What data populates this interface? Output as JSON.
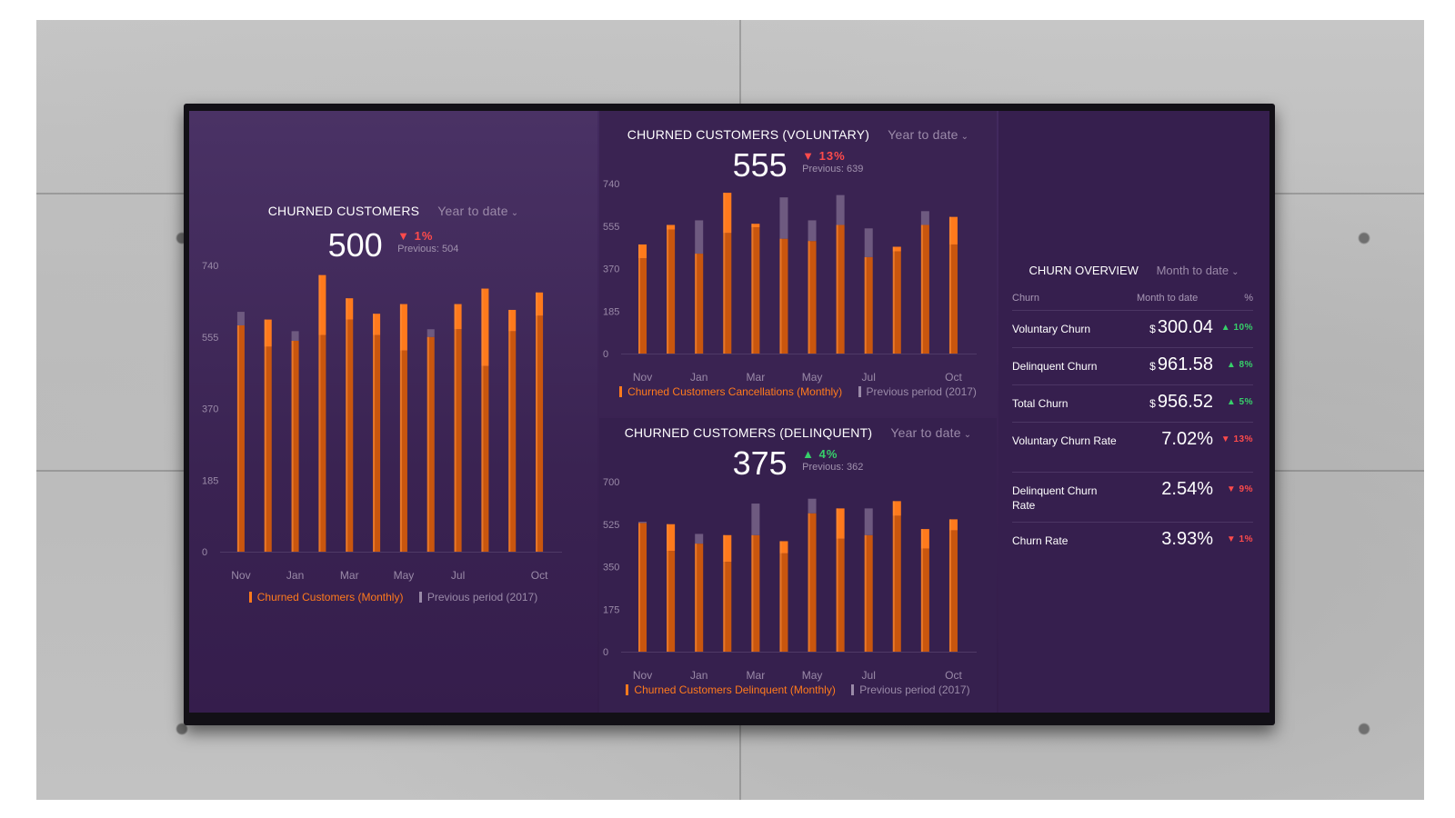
{
  "colors": {
    "accent": "#ff7a1c",
    "accent_dark": "#c9560e",
    "previous": "#6e5a80",
    "negative": "#ff4b4b",
    "positive": "#37d06a"
  },
  "churned": {
    "title": "CHURNED CUSTOMERS",
    "range": "Year to date",
    "value": "500",
    "change_icon": "down-triangle-icon",
    "change": "▼ 1%",
    "previous": "Previous: 504",
    "legend": {
      "main": "Churned Customers (Monthly)",
      "previous": "Previous period (2017)"
    }
  },
  "voluntary": {
    "title": "CHURNED CUSTOMERS (VOLUNTARY)",
    "range": "Year to date",
    "value": "555",
    "change_icon": "down-triangle-icon",
    "change": "▼ 13%",
    "previous": "Previous: 639",
    "legend": {
      "main": "Churned Customers Cancellations (Monthly)",
      "previous": "Previous period (2017)"
    }
  },
  "delinquent": {
    "title": "CHURNED CUSTOMERS (DELINQUENT)",
    "range": "Year to date",
    "value": "375",
    "change_icon": "up-triangle-icon",
    "change": "▲ 4%",
    "previous": "Previous: 362",
    "legend": {
      "main": "Churned Customers Delinquent (Monthly)",
      "previous": "Previous period (2017)"
    }
  },
  "overview": {
    "title": "CHURN OVERVIEW",
    "range": "Month to date",
    "headers": {
      "churn": "Churn",
      "mtd": "Month to date",
      "pct": "%"
    },
    "rows": [
      {
        "label": "Voluntary Churn",
        "currency": "$",
        "value": "300.04",
        "change": "▲ 10%",
        "dir": "up"
      },
      {
        "label": "Delinquent Churn",
        "currency": "$",
        "value": "961.58",
        "change": "▲ 8%",
        "dir": "up"
      },
      {
        "label": "Total Churn",
        "currency": "$",
        "value": "956.52",
        "change": "▲ 5%",
        "dir": "up"
      },
      {
        "label": "Voluntary Churn Rate",
        "currency": "",
        "value": "7.02%",
        "change": "▼ 13%",
        "dir": "down"
      },
      {
        "label": "Delinquent Churn Rate",
        "currency": "",
        "value": "2.54%",
        "change": "▼ 9%",
        "dir": "down"
      },
      {
        "label": "Churn Rate",
        "currency": "",
        "value": "3.93%",
        "change": "▼ 1%",
        "dir": "down"
      }
    ]
  },
  "chart_data": [
    {
      "id": "churned",
      "type": "bar",
      "title": "CHURNED CUSTOMERS",
      "categories": [
        "Nov",
        "Dec",
        "Jan",
        "Feb",
        "Mar",
        "Apr",
        "May",
        "Jun",
        "Jul",
        "Aug",
        "Sep",
        "Oct"
      ],
      "x_tick_labels": [
        "Nov",
        "",
        "Jan",
        "",
        "Mar",
        "",
        "May",
        "",
        "Jul",
        "",
        "",
        "Oct"
      ],
      "y_ticks": [
        "740",
        "555",
        "370",
        "185",
        "0"
      ],
      "ylim": [
        0,
        740
      ],
      "series": [
        {
          "name": "Churned Customers (Monthly)",
          "values": [
            585,
            600,
            545,
            715,
            655,
            615,
            640,
            555,
            640,
            680,
            625,
            670
          ]
        },
        {
          "name": "Previous period (2017)",
          "values": [
            620,
            530,
            570,
            560,
            600,
            560,
            520,
            575,
            575,
            480,
            570,
            610
          ]
        }
      ]
    },
    {
      "id": "voluntary",
      "type": "bar",
      "title": "CHURNED CUSTOMERS (VOLUNTARY)",
      "categories": [
        "Nov",
        "Dec",
        "Jan",
        "Feb",
        "Mar",
        "Apr",
        "May",
        "Jun",
        "Jul",
        "Aug",
        "Sep",
        "Oct"
      ],
      "x_tick_labels": [
        "Nov",
        "",
        "Jan",
        "",
        "Mar",
        "",
        "May",
        "",
        "Jul",
        "",
        "",
        "Oct"
      ],
      "y_ticks": [
        "740",
        "555",
        "370",
        "185",
        "0"
      ],
      "ylim": [
        0,
        740
      ],
      "series": [
        {
          "name": "Churned Customers Cancellations (Monthly)",
          "values": [
            475,
            560,
            435,
            700,
            565,
            500,
            490,
            560,
            420,
            465,
            560,
            595
          ]
        },
        {
          "name": "Previous period (2017)",
          "values": [
            415,
            540,
            580,
            525,
            550,
            680,
            580,
            690,
            545,
            445,
            620,
            475
          ]
        }
      ]
    },
    {
      "id": "delinquent",
      "type": "bar",
      "title": "CHURNED CUSTOMERS (DELINQUENT)",
      "categories": [
        "Nov",
        "Dec",
        "Jan",
        "Feb",
        "Mar",
        "Apr",
        "May",
        "Jun",
        "Jul",
        "Aug",
        "Sep",
        "Oct"
      ],
      "x_tick_labels": [
        "Nov",
        "",
        "Jan",
        "",
        "Mar",
        "",
        "May",
        "",
        "Jul",
        "",
        "",
        "Oct"
      ],
      "y_ticks": [
        "700",
        "525",
        "350",
        "175",
        "0"
      ],
      "ylim": [
        0,
        700
      ],
      "series": [
        {
          "name": "Churned Customers Delinquent (Monthly)",
          "values": [
            530,
            525,
            445,
            480,
            480,
            455,
            570,
            590,
            480,
            620,
            505,
            545
          ]
        },
        {
          "name": "Previous period (2017)",
          "values": [
            535,
            415,
            485,
            370,
            610,
            405,
            630,
            465,
            590,
            560,
            425,
            500
          ]
        }
      ]
    }
  ]
}
